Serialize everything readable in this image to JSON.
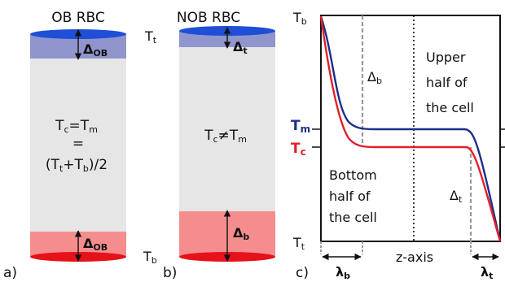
{
  "colors": {
    "blue": "#1c2f8c",
    "red": "#e0202a",
    "band_blue": "#9095cd",
    "band_red": "#f58d8f",
    "core": "#e6e6e6",
    "ellipse_blue": "#1e4fd6",
    "ellipse_red": "#e5121a",
    "dashed": "#999999"
  },
  "panel_a": {
    "title": "OB RBC",
    "delta_top": {
      "base": "Δ",
      "sub": "OB"
    },
    "delta_bottom": {
      "base": "Δ",
      "sub": "OB"
    },
    "center_line1": {
      "a": "T",
      "a_sub": "c",
      "eq": "=T",
      "b_sub": "m"
    },
    "center_line2": "=",
    "center_line3": {
      "p1": "(T",
      "s1": "t",
      "p2": "+T",
      "s2": "b",
      "p3": ")/2"
    },
    "label": "a)"
  },
  "panel_b": {
    "title": "NOB RBC",
    "t_top": {
      "base": "T",
      "sub": "t"
    },
    "t_bottom": {
      "base": "T",
      "sub": "b"
    },
    "delta_top": {
      "base": "Δ",
      "sub": "t"
    },
    "delta_bottom": {
      "base": "Δ",
      "sub": "b"
    },
    "center": {
      "a": "T",
      "a_sub": "c",
      "neq": "≠T",
      "b_sub": "m"
    },
    "label": "b)"
  },
  "panel_c": {
    "t_b": {
      "base": "T",
      "sub": "b"
    },
    "t_t": {
      "base": "T",
      "sub": "t"
    },
    "t_m": {
      "base": "T",
      "sub": "m"
    },
    "t_c": {
      "base": "T",
      "sub": "c"
    },
    "delta_b": {
      "base": "Δ",
      "sub": "b"
    },
    "delta_t": {
      "base": "Δ",
      "sub": "t"
    },
    "upper": [
      "Upper",
      "half of",
      "the cell"
    ],
    "bottom": [
      "Bottom",
      "half of",
      "the cell"
    ],
    "xaxis": "z-axis",
    "lambda_b": {
      "base": "λ",
      "sub": "b"
    },
    "lambda_t": {
      "base": "λ",
      "sub": "t"
    },
    "label": "c)"
  }
}
